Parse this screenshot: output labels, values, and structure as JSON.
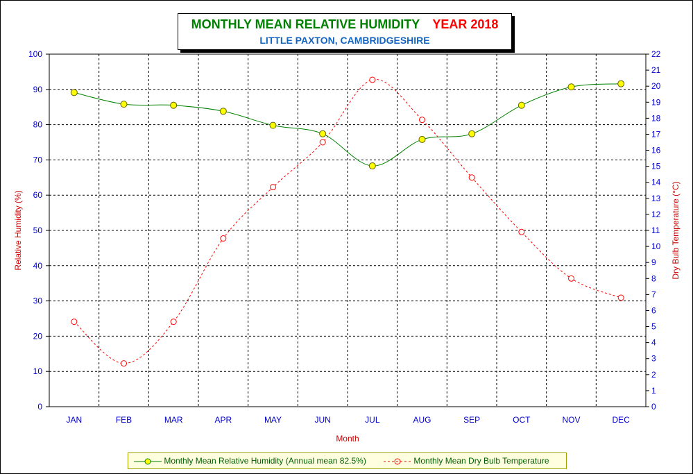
{
  "title": {
    "main": "MONTHLY MEAN RELATIVE HUMIDITY",
    "year": "YEAR 2018",
    "subtitle": "LITTLE PAXTON, CAMBRIDGESHIRE"
  },
  "colors": {
    "humidity_line": "#008000",
    "humidity_marker": "#ffff00",
    "temperature_line": "#ff0000",
    "grid": "#000000",
    "tick_text": "#0000cc",
    "axis_label": "#cc0000"
  },
  "chart_data": {
    "type": "line",
    "categories": [
      "JAN",
      "FEB",
      "MAR",
      "APR",
      "MAY",
      "JUN",
      "JUL",
      "AUG",
      "SEP",
      "OCT",
      "NOV",
      "DEC"
    ],
    "xlabel": "Month",
    "ylabel_left": "Relative Humidity (%)",
    "ylabel_right": "Dry Bulb Temperature (°C)",
    "ylim_left": [
      0,
      100
    ],
    "ylim_right": [
      0,
      22
    ],
    "yticks_left": [
      "0",
      "10",
      "20",
      "30",
      "40",
      "50",
      "60",
      "70",
      "80",
      "90",
      "100"
    ],
    "yticks_right": [
      "0",
      "1",
      "2",
      "3",
      "4",
      "5",
      "6",
      "7",
      "8",
      "9",
      "10",
      "11",
      "12",
      "13",
      "14",
      "15",
      "16",
      "17",
      "18",
      "19",
      "20",
      "21",
      "22"
    ],
    "grid": true,
    "legend_position": "bottom",
    "series": [
      {
        "name": "Monthly Mean Relative Humidity (Annual mean 82.5%)",
        "axis": "left",
        "values": [
          89.1,
          85.8,
          85.5,
          83.8,
          79.8,
          77.4,
          68.3,
          75.8,
          77.4,
          85.5,
          90.7,
          91.6
        ]
      },
      {
        "name": "Monthly Mean Dry Bulb Temperature",
        "axis": "right",
        "values": [
          5.3,
          2.7,
          5.3,
          10.5,
          13.7,
          16.5,
          20.4,
          17.9,
          14.3,
          10.9,
          8.0,
          6.8
        ]
      }
    ]
  }
}
